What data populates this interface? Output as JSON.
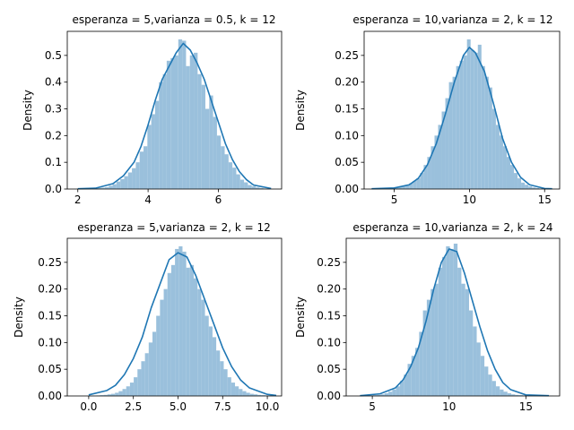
{
  "figure": {
    "background": "#ffffff"
  },
  "chart_data": [
    {
      "type": "bar",
      "title": "esperanza = 5,varianza = 0.5, k = 12",
      "xlabel": "",
      "ylabel": "Density",
      "xlim": [
        1.7,
        7.8
      ],
      "ylim": [
        0,
        0.59
      ],
      "xticks": [
        2,
        4,
        6
      ],
      "yticks": [
        0.0,
        0.1,
        0.2,
        0.3,
        0.4,
        0.5
      ],
      "ytick_labels": [
        "0.0",
        "0.1",
        "0.2",
        "0.3",
        "0.4",
        "0.5"
      ],
      "bar_color": "#9ac0dc",
      "line_color": "#1f77b4",
      "histogram": {
        "bin_start": 2.0,
        "bin_width": 0.11,
        "values": [
          0.001,
          0.001,
          0.001,
          0.002,
          0.003,
          0.004,
          0.005,
          0.007,
          0.012,
          0.018,
          0.028,
          0.037,
          0.048,
          0.062,
          0.078,
          0.1,
          0.14,
          0.16,
          0.24,
          0.28,
          0.33,
          0.4,
          0.43,
          0.48,
          0.49,
          0.5,
          0.56,
          0.555,
          0.46,
          0.5,
          0.51,
          0.43,
          0.39,
          0.3,
          0.35,
          0.27,
          0.2,
          0.16,
          0.13,
          0.1,
          0.08,
          0.055,
          0.035,
          0.025,
          0.015,
          0.01,
          0.006,
          0.004,
          0.002,
          0.001
        ]
      },
      "kde": {
        "x": [
          2.0,
          2.5,
          3.0,
          3.3,
          3.6,
          3.8,
          4.0,
          4.2,
          4.4,
          4.6,
          4.8,
          5.0,
          5.2,
          5.4,
          5.6,
          5.8,
          6.0,
          6.2,
          6.4,
          6.6,
          6.8,
          7.0,
          7.5
        ],
        "y": [
          0.001,
          0.003,
          0.02,
          0.05,
          0.1,
          0.16,
          0.24,
          0.33,
          0.41,
          0.46,
          0.51,
          0.545,
          0.52,
          0.47,
          0.41,
          0.33,
          0.25,
          0.17,
          0.11,
          0.065,
          0.035,
          0.015,
          0.002
        ]
      }
    },
    {
      "type": "bar",
      "title": "esperanza = 10,varianza = 2, k = 12",
      "xlabel": "",
      "ylabel": "Density",
      "xlim": [
        3.0,
        16.0
      ],
      "ylim": [
        0,
        0.295
      ],
      "xticks": [
        5,
        10,
        15
      ],
      "yticks": [
        0.0,
        0.05,
        0.1,
        0.15,
        0.2,
        0.25
      ],
      "ytick_labels": [
        "0.00",
        "0.05",
        "0.10",
        "0.15",
        "0.20",
        "0.25"
      ],
      "bar_color": "#9ac0dc",
      "line_color": "#1f77b4",
      "histogram": {
        "bin_start": 3.6,
        "bin_width": 0.24,
        "values": [
          0.0005,
          0.0005,
          0.0008,
          0.001,
          0.0015,
          0.002,
          0.003,
          0.004,
          0.006,
          0.008,
          0.011,
          0.015,
          0.02,
          0.03,
          0.045,
          0.06,
          0.08,
          0.1,
          0.12,
          0.145,
          0.17,
          0.2,
          0.21,
          0.23,
          0.24,
          0.25,
          0.28,
          0.26,
          0.255,
          0.27,
          0.23,
          0.21,
          0.19,
          0.15,
          0.12,
          0.1,
          0.08,
          0.06,
          0.045,
          0.03,
          0.02,
          0.012,
          0.008,
          0.005,
          0.003,
          0.002,
          0.001,
          0.0008,
          0.0005,
          0.0005
        ]
      },
      "kde": {
        "x": [
          3.5,
          5.0,
          6.0,
          6.6,
          7.2,
          7.8,
          8.4,
          9.0,
          9.6,
          10.0,
          10.4,
          11.0,
          11.6,
          12.2,
          12.8,
          13.4,
          14.0,
          15.0,
          15.5
        ],
        "y": [
          0.0005,
          0.002,
          0.008,
          0.02,
          0.045,
          0.085,
          0.14,
          0.2,
          0.25,
          0.265,
          0.255,
          0.22,
          0.16,
          0.095,
          0.05,
          0.022,
          0.008,
          0.001,
          0.0005
        ]
      }
    },
    {
      "type": "bar",
      "title": "esperanza = 5,varianza = 2, k = 12",
      "xlabel": "",
      "ylabel": "Density",
      "xlim": [
        -1.2,
        10.8
      ],
      "ylim": [
        0,
        0.295
      ],
      "xticks": [
        0.0,
        2.5,
        5.0,
        7.5,
        10.0
      ],
      "xtick_labels": [
        "0.0",
        "2.5",
        "5.0",
        "7.5",
        "10.0"
      ],
      "yticks": [
        0.0,
        0.05,
        0.1,
        0.15,
        0.2,
        0.25
      ],
      "ytick_labels": [
        "0.00",
        "0.05",
        "0.10",
        "0.15",
        "0.20",
        "0.25"
      ],
      "bar_color": "#9ac0dc",
      "line_color": "#1f77b4",
      "histogram": {
        "bin_start": 0.0,
        "bin_width": 0.21,
        "values": [
          0.0005,
          0.0008,
          0.001,
          0.0015,
          0.002,
          0.003,
          0.004,
          0.006,
          0.009,
          0.013,
          0.018,
          0.025,
          0.035,
          0.05,
          0.065,
          0.08,
          0.1,
          0.12,
          0.15,
          0.18,
          0.2,
          0.23,
          0.245,
          0.275,
          0.28,
          0.27,
          0.24,
          0.245,
          0.22,
          0.2,
          0.18,
          0.15,
          0.13,
          0.11,
          0.085,
          0.065,
          0.05,
          0.035,
          0.025,
          0.018,
          0.013,
          0.009,
          0.006,
          0.004,
          0.003,
          0.002,
          0.0015,
          0.001,
          0.0005,
          0.0005
        ]
      },
      "kde": {
        "x": [
          0.0,
          1.0,
          1.5,
          2.0,
          2.5,
          3.0,
          3.5,
          4.0,
          4.5,
          5.0,
          5.5,
          6.0,
          6.5,
          7.0,
          7.5,
          8.0,
          8.5,
          9.0,
          10.0,
          10.5
        ],
        "y": [
          0.002,
          0.01,
          0.02,
          0.04,
          0.07,
          0.11,
          0.165,
          0.21,
          0.255,
          0.268,
          0.26,
          0.225,
          0.18,
          0.135,
          0.09,
          0.055,
          0.03,
          0.015,
          0.003,
          0.001
        ]
      }
    },
    {
      "type": "bar",
      "title": "esperanza = 10,varianza = 2, k = 24",
      "xlabel": "",
      "ylabel": "Density",
      "xlim": [
        3.3,
        17.2
      ],
      "ylim": [
        0,
        0.295
      ],
      "xticks": [
        5,
        10,
        15
      ],
      "yticks": [
        0.0,
        0.05,
        0.1,
        0.15,
        0.2,
        0.25
      ],
      "ytick_labels": [
        "0.00",
        "0.05",
        "0.10",
        "0.15",
        "0.20",
        "0.25"
      ],
      "bar_color": "#9ac0dc",
      "line_color": "#1f77b4",
      "histogram": {
        "bin_start": 4.3,
        "bin_width": 0.25,
        "values": [
          0.0005,
          0.0008,
          0.001,
          0.0015,
          0.002,
          0.003,
          0.005,
          0.008,
          0.012,
          0.018,
          0.028,
          0.04,
          0.06,
          0.075,
          0.09,
          0.12,
          0.16,
          0.18,
          0.2,
          0.21,
          0.24,
          0.26,
          0.28,
          0.275,
          0.285,
          0.24,
          0.21,
          0.2,
          0.16,
          0.13,
          0.1,
          0.075,
          0.055,
          0.04,
          0.028,
          0.018,
          0.012,
          0.008,
          0.005,
          0.003,
          0.002,
          0.0015,
          0.001,
          0.0008,
          0.0005,
          0.0005,
          0.0005,
          0.0005,
          0.0005,
          0.0005
        ]
      },
      "kde": {
        "x": [
          4.2,
          5.5,
          6.5,
          7.0,
          7.5,
          8.0,
          8.5,
          9.0,
          9.5,
          10.0,
          10.5,
          11.0,
          11.5,
          12.0,
          12.5,
          13.0,
          13.5,
          14.0,
          15.0,
          16.5
        ],
        "y": [
          0.0005,
          0.004,
          0.015,
          0.03,
          0.055,
          0.09,
          0.14,
          0.2,
          0.25,
          0.275,
          0.27,
          0.23,
          0.18,
          0.13,
          0.085,
          0.05,
          0.025,
          0.012,
          0.002,
          0.0005
        ]
      }
    }
  ]
}
